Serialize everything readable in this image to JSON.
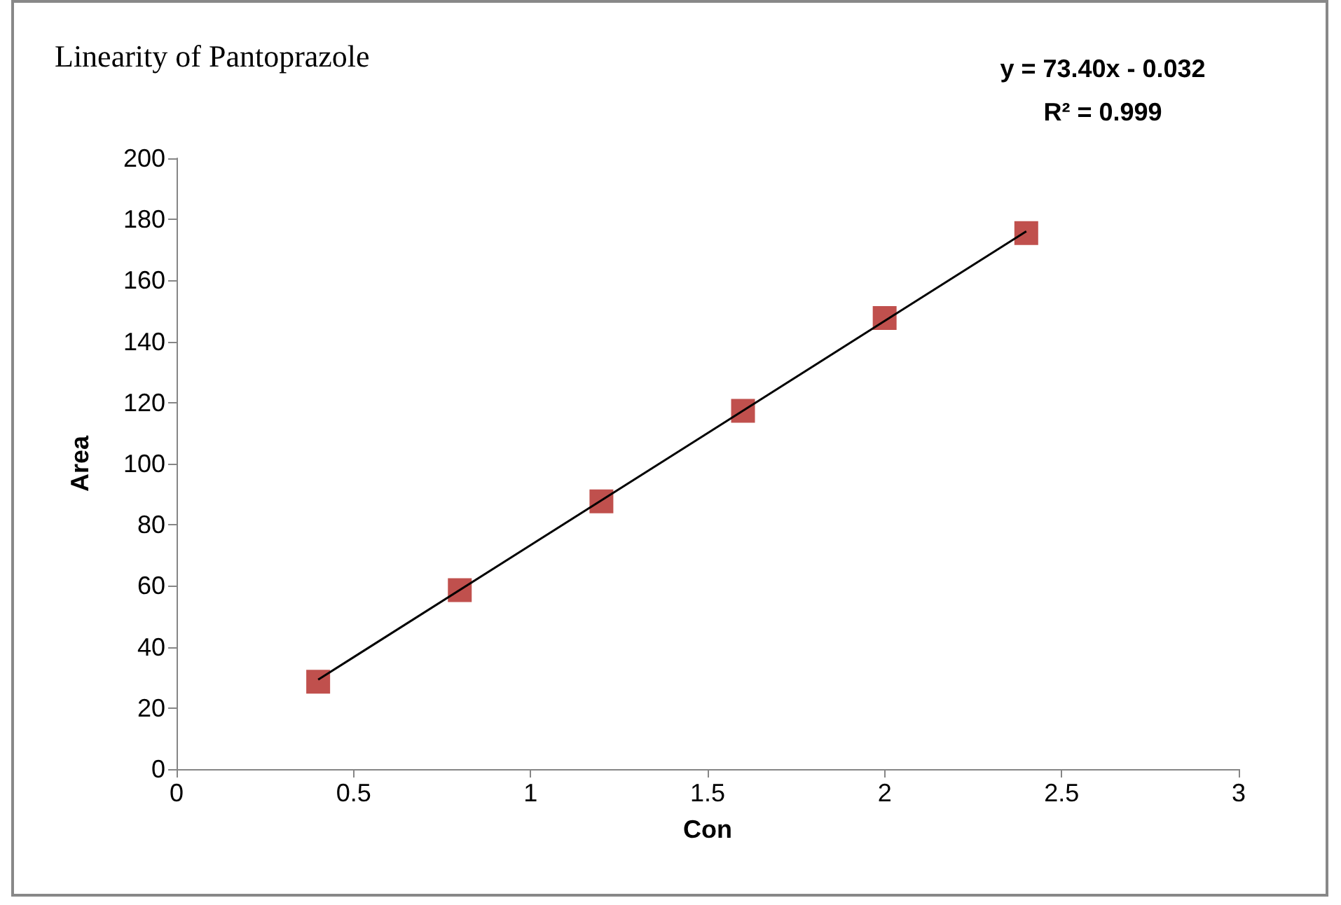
{
  "chart_data": {
    "type": "scatter",
    "title": "Linearity of Pantoprazole",
    "xlabel": "Con",
    "ylabel": "Area",
    "annotations": [
      "y = 73.40x - 0.032",
      "R² = 0.999"
    ],
    "xlim": [
      0,
      3
    ],
    "xticks": [
      0,
      0.5,
      1,
      1.5,
      2,
      2.5,
      3
    ],
    "ylim": [
      0,
      200
    ],
    "yticks": [
      0,
      20,
      40,
      60,
      80,
      100,
      120,
      140,
      160,
      180,
      200
    ],
    "marker": "square",
    "series": [
      {
        "color": "#c0504d",
        "x": [
          0.4,
          0.8,
          1.2,
          1.6,
          2,
          2.4
        ],
        "values": [
          28.6,
          58.6,
          87.7,
          117.3,
          147.7,
          175.5
        ]
      },
      {
        "type": "line",
        "color": "#000000",
        "marker": "none",
        "x": [
          0.4,
          2.4
        ],
        "values": [
          29.3,
          176.1
        ]
      }
    ]
  }
}
